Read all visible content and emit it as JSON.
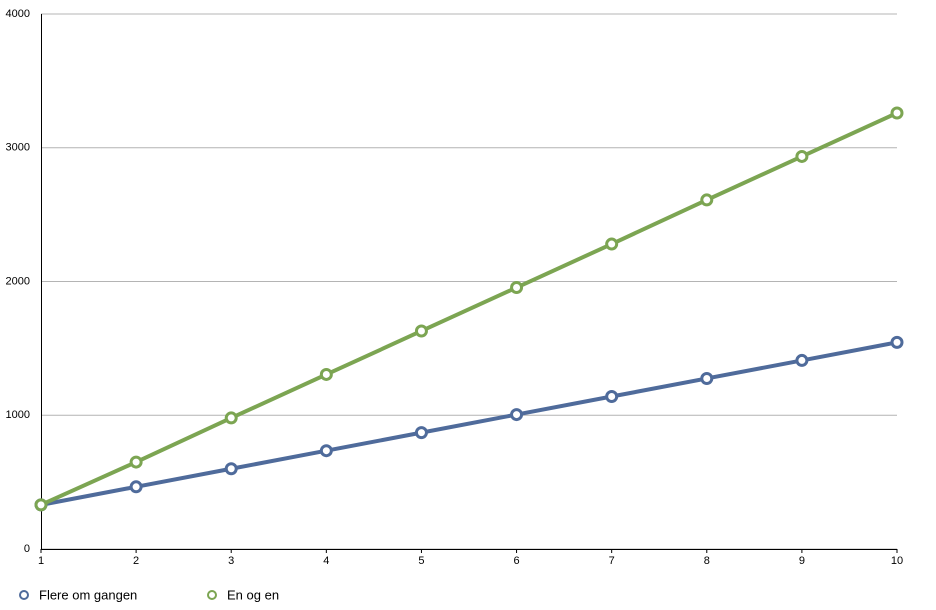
{
  "chart_data": {
    "type": "line",
    "x": [
      1,
      2,
      3,
      4,
      5,
      6,
      7,
      8,
      9,
      10
    ],
    "series": [
      {
        "name": "Flere om gangen",
        "color": "#4f6b9b",
        "values": [
          330,
          465,
          600,
          735,
          870,
          1005,
          1140,
          1275,
          1410,
          1545
        ]
      },
      {
        "name": "En og en",
        "color": "#7ca552",
        "values": [
          330,
          650,
          980,
          1305,
          1630,
          1955,
          2280,
          2610,
          2935,
          3260
        ]
      }
    ],
    "xlim": [
      1,
      10
    ],
    "xticks": [
      1,
      2,
      3,
      4,
      5,
      6,
      7,
      8,
      9,
      10
    ],
    "ylim": [
      0,
      4000
    ],
    "yticks": [
      0,
      1000,
      2000,
      3000,
      4000
    ],
    "grid": true,
    "legend": "bottom"
  }
}
